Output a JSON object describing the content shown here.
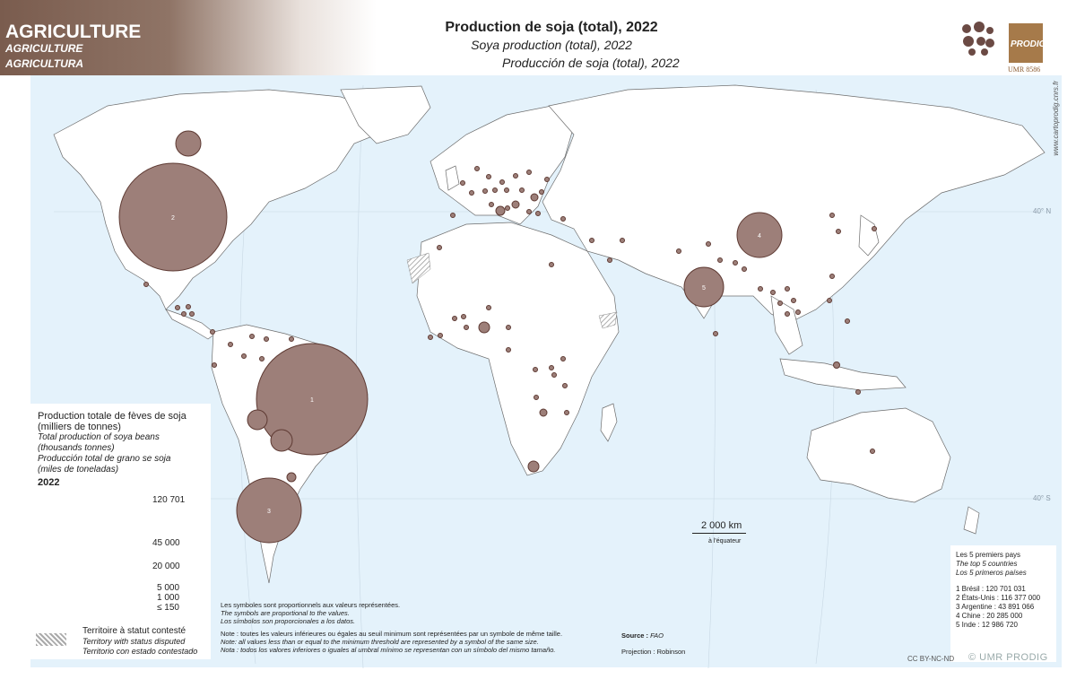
{
  "header": {
    "theme_fr": "AGRICULTURE",
    "theme_en": "AGRICULTURE",
    "theme_es": "AGRICULTURA",
    "title_fr": "Production de soja (total), 2022",
    "title_en": "Soya production (total), 2022",
    "title_es": "Producción de soja (total), 2022"
  },
  "logo": {
    "name": "PRODIG",
    "unit": "UMR 8586"
  },
  "credit_url": "www.cartoprodig.cnrs.fr",
  "graticule": {
    "lat_north": "40° N",
    "lat_south": "40° S"
  },
  "colors": {
    "ocean": "#e4f2fb",
    "land": "#ffffff",
    "symbol_fill": "#9d7f79",
    "symbol_stroke": "#5e3a33",
    "header": "#7a5c4e"
  },
  "legend": {
    "title_fr": "Production totale de fèves de soja",
    "title_fr2": "(milliers de tonnes)",
    "title_en": "Total production of soya beans",
    "title_en2": "(thousands tonnes)",
    "title_es": "Producción total de grano se soja",
    "title_es2": "(miles de toneladas)",
    "year": "2022",
    "values": [
      "120 701",
      "45 000",
      "20 000",
      "5 000",
      "1 000",
      "≤ 150"
    ],
    "disputed_fr": "Territoire à statut contesté",
    "disputed_en": "Territory with status disputed",
    "disputed_es": "Territorio con estado contestado"
  },
  "scale": {
    "label": "2 000 km",
    "note": "à l'équateur"
  },
  "notes": {
    "prop_fr": "Les symboles sont proportionnels aux valeurs représentées.",
    "prop_en": "The symbols are proportional to the values.",
    "prop_es": "Los símbolos son proporcionales a los datos.",
    "thr_fr": "Note : toutes les valeurs inférieures ou égales au seuil minimum sont représentées par un symbole de même taille.",
    "thr_en": "Note: all values less than or equal to the minimum threshold are represented by a symbol of the same size.",
    "thr_es": "Nota : todos los valores inferiores o iguales al umbral mínimo se representan con un símbolo del mismo tamaño."
  },
  "source": {
    "label": "Source :",
    "value": "FAO",
    "projection": "Projection : Robinson"
  },
  "top5": {
    "title_fr": "Les 5 premiers pays",
    "title_en": "The top 5 countries",
    "title_es": "Los 5 primeros países",
    "rows": [
      "1  Brésil : 120 701 031",
      "2  États-Unis : 116 377 000",
      "3  Argentine : 43 891 066",
      "4  Chine : 20 285 000",
      "5  Inde : 12 986 720"
    ]
  },
  "rank_labels": [
    "1",
    "2",
    "3",
    "4",
    "5"
  ],
  "license": "CC BY-NC-ND",
  "copyright": "© UMR PRODIG"
}
